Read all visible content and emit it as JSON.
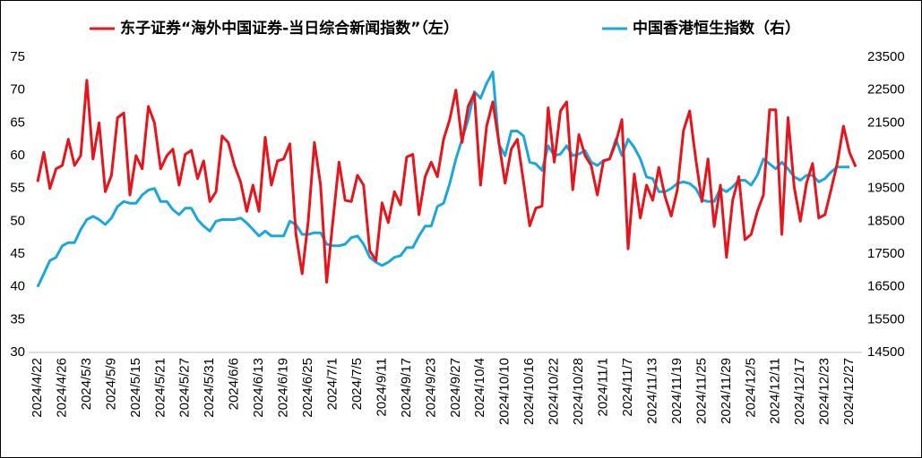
{
  "chart_data": {
    "type": "line",
    "categories": [
      "2024/4/22",
      null,
      null,
      null,
      "2024/4/26",
      null,
      null,
      null,
      "2024/5/3",
      null,
      null,
      null,
      "2024/5/9",
      null,
      null,
      null,
      "2024/5/15",
      null,
      null,
      null,
      "2024/5/21",
      null,
      null,
      null,
      "2024/5/27",
      null,
      null,
      null,
      "2024/5/31",
      null,
      null,
      null,
      "2024/6/6",
      null,
      null,
      null,
      "2024/6/13",
      null,
      null,
      null,
      "2024/6/19",
      null,
      null,
      null,
      "2024/6/25",
      null,
      null,
      null,
      "2024/7/1",
      null,
      null,
      null,
      "2024/7/5",
      null,
      null,
      null,
      "2024/9/11",
      null,
      null,
      null,
      "2024/9/17",
      null,
      null,
      null,
      "2024/9/23",
      null,
      null,
      null,
      "2024/9/27",
      null,
      null,
      null,
      "2024/10/4",
      null,
      null,
      null,
      "2024/10/10",
      null,
      null,
      null,
      "2024/10/16",
      null,
      null,
      null,
      "2024/10/22",
      null,
      null,
      null,
      "2024/10/28",
      null,
      null,
      null,
      "2024/11/1",
      null,
      null,
      null,
      "2024/11/7",
      null,
      null,
      null,
      "2024/11/13",
      null,
      null,
      null,
      "2024/11/19",
      null,
      null,
      null,
      "2024/11/25",
      null,
      null,
      null,
      "2024/11/29",
      null,
      null,
      null,
      "2024/12/5",
      null,
      null,
      null,
      "2024/12/11",
      null,
      null,
      null,
      "2024/12/17",
      null,
      null,
      null,
      "2024/12/23",
      null,
      null,
      null,
      "2024/12/27",
      null
    ],
    "series": [
      {
        "name": "东子证券“海外中国证券-当日综合新闻指数”（左）",
        "color": "#e8141b",
        "values": [
          56,
          60.5,
          55,
          58,
          58.5,
          62.5,
          58.5,
          60,
          71.5,
          59.5,
          65,
          54.5,
          57,
          65.8,
          66.5,
          54,
          60,
          58,
          67.5,
          65,
          58,
          60,
          61,
          55.5,
          60.2,
          60.8,
          56.5,
          59.2,
          53,
          54.5,
          63,
          62,
          58.5,
          56,
          51.5,
          55.5,
          51.5,
          62.8,
          55.5,
          59.2,
          59.5,
          61.8,
          48,
          42,
          50,
          62,
          55.5,
          40.7,
          50,
          59,
          53.2,
          53,
          57,
          55.5,
          45.5,
          44,
          52.8,
          49.8,
          54.5,
          52.5,
          59.8,
          60.2,
          51,
          56.8,
          59,
          56.8,
          62.5,
          65.5,
          70,
          62,
          67.5,
          69.5,
          55.5,
          64.5,
          68.2,
          62,
          55.8,
          61,
          62.5,
          56,
          49.3,
          52,
          52.3,
          67.3,
          59,
          66.8,
          68.2,
          54.8,
          63.2,
          60,
          58.5,
          54,
          59.2,
          59.5,
          62,
          65.5,
          45.8,
          57.2,
          50.5,
          55.5,
          53.2,
          58.2,
          53.8,
          50.8,
          54.8,
          63.8,
          66.8,
          59.5,
          53,
          59.5,
          49.2,
          55.5,
          44.5,
          53.2,
          56.8,
          47.2,
          48,
          51.5,
          54,
          67,
          67,
          48,
          65.8,
          55.2,
          50,
          55.8,
          58.8,
          50.5,
          51,
          54.8,
          58.8,
          64.5,
          60.5,
          58.3
        ]
      },
      {
        "name": "中国香港恒生指数（右）",
        "color": "#1aa7e0",
        "axis": "y2",
        "values": [
          16500,
          16900,
          17300,
          17400,
          17750,
          17850,
          17850,
          18250,
          18550,
          18650,
          18550,
          18400,
          18600,
          18950,
          19100,
          19050,
          19050,
          19300,
          19450,
          19500,
          19100,
          19100,
          18850,
          18700,
          18900,
          18900,
          18550,
          18350,
          18200,
          18500,
          18550,
          18550,
          18550,
          18600,
          18450,
          18250,
          18050,
          18200,
          18050,
          18050,
          18050,
          18500,
          18400,
          18100,
          18100,
          18150,
          18150,
          17800,
          17750,
          17750,
          17800,
          18000,
          18050,
          17800,
          17400,
          17250,
          17150,
          17250,
          17400,
          17450,
          17700,
          17700,
          18050,
          18350,
          18350,
          18950,
          19050,
          19650,
          20400,
          21000,
          21600,
          22450,
          22250,
          22700,
          23050,
          20850,
          20500,
          21250,
          21250,
          21100,
          20300,
          20250,
          20050,
          20800,
          20500,
          20550,
          20800,
          20500,
          20550,
          20650,
          20300,
          20200,
          20350,
          20400,
          21000,
          20500,
          21000,
          20750,
          20400,
          19850,
          19800,
          19400,
          19400,
          19500,
          19650,
          19700,
          19650,
          19500,
          19150,
          19100,
          19100,
          19500,
          19400,
          19550,
          19750,
          19750,
          19600,
          19900,
          20400,
          20250,
          20100,
          20300,
          20100,
          19850,
          19750,
          19900,
          19900,
          19700,
          19800,
          20000,
          20150,
          20150,
          20150,
          null
        ]
      }
    ],
    "ylim": [
      30,
      75
    ],
    "yticks": [
      30,
      35,
      40,
      45,
      50,
      55,
      60,
      65,
      70,
      75
    ],
    "y2lim": [
      14500,
      23500
    ],
    "y2ticks": [
      14500,
      15500,
      16500,
      17500,
      18500,
      19500,
      20500,
      21500,
      22500,
      23500
    ],
    "grid": false
  }
}
